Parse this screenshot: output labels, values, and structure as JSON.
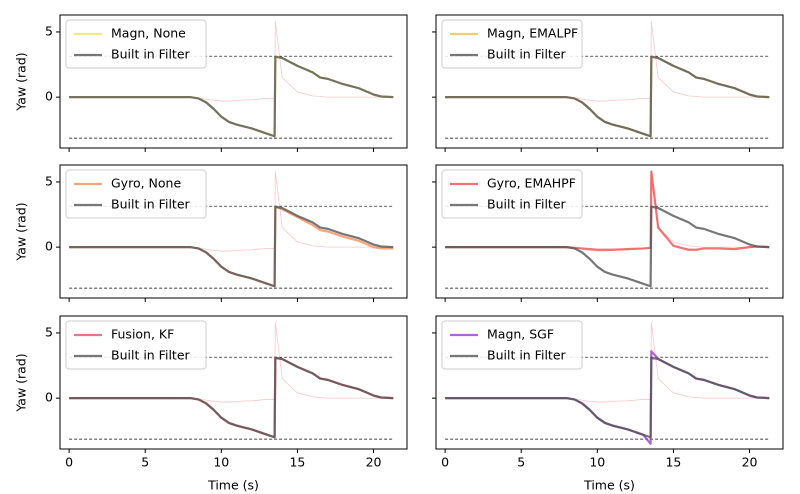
{
  "chart_data": [
    {
      "type": "line",
      "ylabel": "Yaw (rad)",
      "legend": "upper left",
      "xtick_labels": false,
      "ytick_labels": true,
      "xlim": [
        -0.6,
        22.2
      ],
      "ylim": [
        -3.9,
        6.3
      ],
      "xticks": [
        0,
        5,
        10,
        15,
        20
      ],
      "yticks": [
        0,
        5
      ],
      "hlines": [
        3.14,
        -3.14
      ],
      "x": [
        0,
        8,
        8.5,
        9,
        9.5,
        10,
        10.5,
        11,
        12,
        13,
        13.5,
        13.55,
        14,
        15,
        16,
        16.5,
        17,
        18,
        19,
        20,
        20.5,
        21.3
      ],
      "series": [
        {
          "name": "Magn, None",
          "color": "#efe36a",
          "values": [
            0,
            0,
            -0.1,
            -0.4,
            -0.9,
            -1.5,
            -1.9,
            -2.1,
            -2.4,
            -2.8,
            -3.0,
            3.1,
            3.0,
            2.4,
            1.9,
            1.5,
            1.4,
            1.0,
            0.7,
            0.2,
            0.05,
            0
          ]
        },
        {
          "name": "Built in Filter",
          "color": "#555555",
          "values": [
            0,
            0,
            -0.1,
            -0.4,
            -0.9,
            -1.5,
            -1.9,
            -2.1,
            -2.4,
            -2.8,
            -3.0,
            3.1,
            3.0,
            2.4,
            1.9,
            1.5,
            1.4,
            1.0,
            0.7,
            0.2,
            0.05,
            0
          ]
        },
        {
          "color": "#f7b0b8",
          "values": [
            0,
            0,
            -0.05,
            -0.15,
            -0.25,
            -0.3,
            -0.3,
            -0.25,
            -0.2,
            -0.1,
            -0.1,
            5.8,
            1.5,
            0.4,
            0.1,
            0.05,
            0,
            0,
            0,
            0,
            0,
            0
          ]
        }
      ]
    },
    {
      "type": "line",
      "legend": "upper left",
      "xtick_labels": false,
      "ytick_labels": false,
      "xlim": [
        -0.6,
        22.2
      ],
      "ylim": [
        -3.9,
        6.3
      ],
      "xticks": [
        0,
        5,
        10,
        15,
        20
      ],
      "yticks": [
        0,
        5
      ],
      "hlines": [
        3.14,
        -3.14
      ],
      "x": [
        0,
        8,
        8.5,
        9,
        9.5,
        10,
        10.5,
        11,
        12,
        13,
        13.5,
        13.55,
        14,
        15,
        16,
        16.5,
        17,
        18,
        19,
        20,
        20.5,
        21.3
      ],
      "series": [
        {
          "name": "Magn, EMALPF",
          "color": "#f0c050",
          "values": [
            0,
            0,
            -0.1,
            -0.4,
            -0.9,
            -1.5,
            -1.9,
            -2.1,
            -2.4,
            -2.8,
            -3.0,
            3.1,
            3.0,
            2.4,
            1.9,
            1.5,
            1.4,
            1.0,
            0.7,
            0.2,
            0.05,
            0
          ]
        },
        {
          "name": "Built in Filter",
          "color": "#555555",
          "values": [
            0,
            0,
            -0.1,
            -0.4,
            -0.9,
            -1.5,
            -1.9,
            -2.1,
            -2.4,
            -2.8,
            -3.0,
            3.1,
            3.0,
            2.4,
            1.9,
            1.5,
            1.4,
            1.0,
            0.7,
            0.2,
            0.05,
            0
          ]
        },
        {
          "color": "#f7b0b8",
          "values": [
            0,
            0,
            -0.05,
            -0.15,
            -0.25,
            -0.3,
            -0.3,
            -0.25,
            -0.2,
            -0.1,
            -0.1,
            5.8,
            1.5,
            0.4,
            0.1,
            0.05,
            0,
            0,
            0,
            0,
            0,
            0
          ]
        }
      ]
    },
    {
      "type": "line",
      "ylabel": "Yaw (rad)",
      "legend": "upper left",
      "xtick_labels": false,
      "ytick_labels": true,
      "xlim": [
        -0.6,
        22.2
      ],
      "ylim": [
        -3.9,
        6.3
      ],
      "xticks": [
        0,
        5,
        10,
        15,
        20
      ],
      "yticks": [
        0,
        5
      ],
      "hlines": [
        3.14,
        -3.14
      ],
      "x": [
        0,
        8,
        8.5,
        9,
        9.5,
        10,
        10.5,
        11,
        12,
        13,
        13.5,
        13.55,
        14,
        15,
        16,
        16.5,
        17,
        18,
        19,
        20,
        20.5,
        21.3
      ],
      "series": [
        {
          "name": "Gyro, None",
          "color": "#f4905a",
          "values": [
            0,
            0,
            -0.1,
            -0.4,
            -0.9,
            -1.5,
            -1.9,
            -2.1,
            -2.4,
            -2.8,
            -3.0,
            3.1,
            2.9,
            2.3,
            1.7,
            1.3,
            1.2,
            0.8,
            0.5,
            0.0,
            -0.1,
            -0.1
          ]
        },
        {
          "name": "Built in Filter",
          "color": "#555555",
          "values": [
            0,
            0,
            -0.1,
            -0.4,
            -0.9,
            -1.5,
            -1.9,
            -2.1,
            -2.4,
            -2.8,
            -3.0,
            3.1,
            3.0,
            2.4,
            1.9,
            1.5,
            1.4,
            1.0,
            0.7,
            0.2,
            0.05,
            0
          ]
        },
        {
          "color": "#f7b0b8",
          "values": [
            0,
            0,
            -0.05,
            -0.15,
            -0.25,
            -0.3,
            -0.3,
            -0.25,
            -0.2,
            -0.1,
            -0.1,
            5.8,
            1.5,
            0.4,
            0.1,
            0.05,
            0,
            0,
            0,
            0,
            0,
            0
          ]
        }
      ]
    },
    {
      "type": "line",
      "legend": "upper left",
      "xtick_labels": false,
      "ytick_labels": false,
      "xlim": [
        -0.6,
        22.2
      ],
      "ylim": [
        -3.9,
        6.3
      ],
      "xticks": [
        0,
        5,
        10,
        15,
        20
      ],
      "yticks": [
        0,
        5
      ],
      "hlines": [
        3.14,
        -3.14
      ],
      "x": [
        0,
        8,
        8.5,
        9,
        9.5,
        10,
        10.5,
        11,
        12,
        13,
        13.5,
        13.55,
        14,
        15,
        16,
        16.5,
        17,
        18,
        19,
        20,
        20.5,
        21.3
      ],
      "series": [
        {
          "name": "Gyro, EMAHPF",
          "color": "#f05050",
          "values": [
            0,
            0,
            -0.05,
            -0.1,
            -0.15,
            -0.2,
            -0.2,
            -0.2,
            -0.15,
            -0.1,
            -0.05,
            5.8,
            1.5,
            0.1,
            -0.2,
            -0.2,
            -0.1,
            -0.1,
            -0.15,
            0,
            0.05,
            0
          ]
        },
        {
          "name": "Built in Filter",
          "color": "#555555",
          "values": [
            0,
            0,
            -0.1,
            -0.4,
            -0.9,
            -1.5,
            -1.9,
            -2.1,
            -2.4,
            -2.8,
            -3.0,
            3.1,
            3.0,
            2.4,
            1.9,
            1.5,
            1.4,
            1.0,
            0.7,
            0.2,
            0.05,
            0
          ]
        },
        {
          "color": "#f7b0b8",
          "values": [
            0,
            0,
            -0.05,
            -0.15,
            -0.25,
            -0.3,
            -0.3,
            -0.25,
            -0.2,
            -0.1,
            -0.1,
            5.8,
            1.5,
            0.4,
            0.1,
            0.05,
            0,
            0,
            0,
            0,
            0,
            0
          ]
        }
      ]
    },
    {
      "type": "line",
      "ylabel": "Yaw (rad)",
      "xlabel": "Time (s)",
      "legend": "upper left",
      "xtick_labels": true,
      "ytick_labels": true,
      "xlim": [
        -0.6,
        22.2
      ],
      "ylim": [
        -3.9,
        6.3
      ],
      "xticks": [
        0,
        5,
        10,
        15,
        20
      ],
      "yticks": [
        0,
        5
      ],
      "hlines": [
        3.14,
        -3.14
      ],
      "x": [
        0,
        8,
        8.5,
        9,
        9.5,
        10,
        10.5,
        11,
        12,
        13,
        13.5,
        13.55,
        14,
        15,
        16,
        16.5,
        17,
        18,
        19,
        20,
        20.5,
        21.3
      ],
      "series": [
        {
          "name": "Fusion, KF",
          "color": "#e8506a",
          "values": [
            0,
            0,
            -0.1,
            -0.4,
            -0.9,
            -1.5,
            -1.9,
            -2.1,
            -2.4,
            -2.8,
            -3.0,
            3.1,
            3.0,
            2.4,
            1.9,
            1.5,
            1.4,
            1.0,
            0.7,
            0.2,
            0.05,
            0
          ]
        },
        {
          "name": "Built in Filter",
          "color": "#555555",
          "values": [
            0,
            0,
            -0.1,
            -0.4,
            -0.9,
            -1.5,
            -1.9,
            -2.1,
            -2.4,
            -2.8,
            -3.0,
            3.1,
            3.0,
            2.4,
            1.9,
            1.5,
            1.4,
            1.0,
            0.7,
            0.2,
            0.05,
            0
          ]
        },
        {
          "color": "#f7b0b8",
          "values": [
            0,
            0,
            -0.05,
            -0.15,
            -0.25,
            -0.3,
            -0.3,
            -0.25,
            -0.2,
            -0.1,
            -0.1,
            5.8,
            1.5,
            0.4,
            0.1,
            0.05,
            0,
            0,
            0,
            0,
            0,
            0
          ]
        }
      ]
    },
    {
      "type": "line",
      "xlabel": "Time (s)",
      "legend": "upper left",
      "xtick_labels": true,
      "ytick_labels": false,
      "xlim": [
        -0.6,
        22.2
      ],
      "ylim": [
        -3.9,
        6.3
      ],
      "xticks": [
        0,
        5,
        10,
        15,
        20
      ],
      "yticks": [
        0,
        5
      ],
      "hlines": [
        3.14,
        -3.14
      ],
      "x": [
        0,
        8,
        8.5,
        9,
        9.5,
        10,
        10.5,
        11,
        12,
        13,
        13.5,
        13.55,
        14,
        15,
        16,
        16.5,
        17,
        18,
        19,
        20,
        20.5,
        21.3
      ],
      "series": [
        {
          "name": "Magn, SGF",
          "color": "#a040c8",
          "values": [
            0,
            0,
            -0.1,
            -0.4,
            -0.9,
            -1.5,
            -1.9,
            -2.1,
            -2.4,
            -2.8,
            -3.5,
            3.6,
            3.0,
            2.4,
            1.9,
            1.5,
            1.4,
            1.0,
            0.7,
            0.2,
            0.05,
            0
          ]
        },
        {
          "name": "Built in Filter",
          "color": "#555555",
          "values": [
            0,
            0,
            -0.1,
            -0.4,
            -0.9,
            -1.5,
            -1.9,
            -2.1,
            -2.4,
            -2.8,
            -3.0,
            3.1,
            3.0,
            2.4,
            1.9,
            1.5,
            1.4,
            1.0,
            0.7,
            0.2,
            0.05,
            0
          ]
        },
        {
          "color": "#f7b0b8",
          "values": [
            0,
            0,
            -0.05,
            -0.15,
            -0.25,
            -0.3,
            -0.3,
            -0.25,
            -0.2,
            -0.1,
            -0.1,
            5.8,
            1.5,
            0.4,
            0.1,
            0.05,
            0,
            0,
            0,
            0,
            0,
            0
          ]
        }
      ]
    }
  ]
}
